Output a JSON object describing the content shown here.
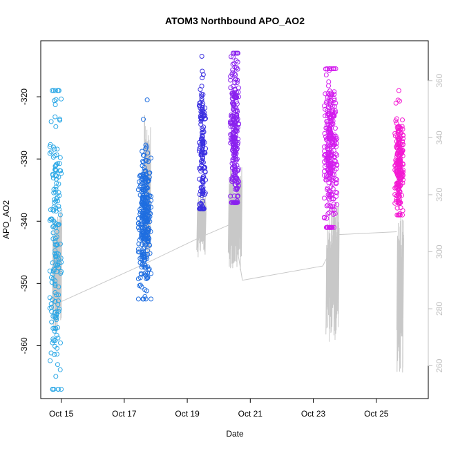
{
  "chart_data": {
    "type": "scatter",
    "title": "ATOM3 Northbound APO_AO2",
    "xlabel": "Date",
    "ylabel": "APO_AO2",
    "x_unit": "date (October)",
    "xlim": [
      14.35,
      26.65
    ],
    "ylim": [
      -368.5,
      -311.0
    ],
    "y2lim": [
      248.5,
      374.0
    ],
    "x_ticks": [
      {
        "value": 15,
        "label": "Oct 15"
      },
      {
        "value": 17,
        "label": "Oct 17"
      },
      {
        "value": 19,
        "label": "Oct 19"
      },
      {
        "value": 21,
        "label": "Oct 21"
      },
      {
        "value": 23,
        "label": "Oct 23"
      },
      {
        "value": 25,
        "label": "Oct 25"
      }
    ],
    "y_ticks": [
      -360,
      -350,
      -340,
      -330,
      -320
    ],
    "y2_ticks": [
      260,
      280,
      300,
      320,
      340,
      360
    ],
    "point_color_scale": [
      "#00aaee",
      "#ff00cc"
    ],
    "line_color": "#c8c8c8",
    "clusters": [
      {
        "x_center": 14.82,
        "x_spread": 0.18,
        "y_center": -343,
        "y_spread": 13,
        "y_min": -367,
        "y_max": -319,
        "n": 180,
        "color": "#2aa7e6"
      },
      {
        "x_center": 17.65,
        "x_spread": 0.2,
        "y_center": -340,
        "y_spread": 5,
        "y_min": -352.5,
        "y_max": -320.5,
        "n": 320,
        "color": "#1f6ee0"
      },
      {
        "x_center": 19.48,
        "x_spread": 0.1,
        "y_center": -329,
        "y_spread": 7,
        "y_min": -338,
        "y_max": -313.5,
        "n": 150,
        "color": "#3a2fe0"
      },
      {
        "x_center": 20.5,
        "x_spread": 0.13,
        "y_center": -327,
        "y_spread": 7,
        "y_min": -337,
        "y_max": -313,
        "n": 260,
        "color": "#8a22ee"
      },
      {
        "x_center": 23.55,
        "x_spread": 0.2,
        "y_center": -329,
        "y_spread": 6,
        "y_min": -341,
        "y_max": -315.5,
        "n": 300,
        "color": "#d31cee"
      },
      {
        "x_center": 25.72,
        "x_spread": 0.13,
        "y_center": -331,
        "y_spread": 4,
        "y_min": -339,
        "y_max": -319,
        "n": 220,
        "color": "#f41ad2"
      }
    ],
    "background_line": {
      "axis": "right",
      "baseline": [
        {
          "x": 14.9,
          "y": 282
        },
        {
          "x": 17.7,
          "y": 296
        },
        {
          "x": 19.4,
          "y": 305
        },
        {
          "x": 20.45,
          "y": 310
        },
        {
          "x": 20.75,
          "y": 290
        },
        {
          "x": 23.3,
          "y": 295
        },
        {
          "x": 23.8,
          "y": 306
        },
        {
          "x": 25.65,
          "y": 307
        }
      ],
      "spike_groups": [
        {
          "x_start": 14.72,
          "x_end": 15.0,
          "n": 30,
          "low": 270,
          "high": 315
        },
        {
          "x_start": 17.62,
          "x_end": 17.82,
          "n": 24,
          "low": 297,
          "high": 348
        },
        {
          "x_start": 19.3,
          "x_end": 19.58,
          "n": 20,
          "low": 298,
          "high": 322
        },
        {
          "x_start": 20.3,
          "x_end": 20.72,
          "n": 36,
          "low": 293,
          "high": 330
        },
        {
          "x_start": 23.4,
          "x_end": 23.8,
          "n": 34,
          "low": 268,
          "high": 318
        },
        {
          "x_start": 25.65,
          "x_end": 25.85,
          "n": 26,
          "low": 257,
          "high": 314
        }
      ]
    }
  }
}
